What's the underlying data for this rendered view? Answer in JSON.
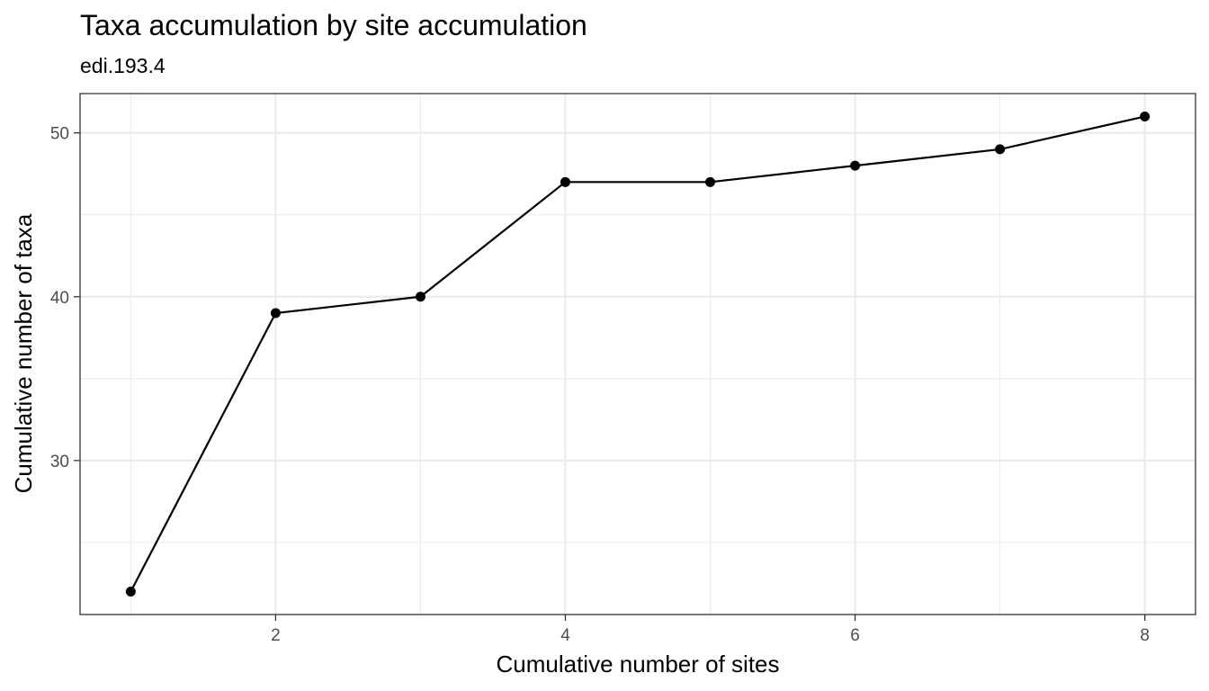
{
  "chart_data": {
    "type": "line",
    "title": "Taxa accumulation by site accumulation",
    "subtitle": "edi.193.4",
    "xlabel": "Cumulative number of sites",
    "ylabel": "Cumulative number of taxa",
    "x": [
      1,
      2,
      3,
      4,
      5,
      6,
      7,
      8
    ],
    "series": [
      {
        "values": [
          22,
          39,
          40,
          47,
          47,
          48,
          49,
          51
        ]
      }
    ],
    "xlim": [
      0.65,
      8.35
    ],
    "ylim": [
      20.6,
      52.4
    ],
    "x_ticks": [
      2,
      4,
      6,
      8
    ],
    "x_tick_labels": [
      "2",
      "4",
      "6",
      "8"
    ],
    "y_ticks": [
      30,
      40,
      50
    ],
    "y_tick_labels": [
      "30",
      "40",
      "50"
    ],
    "x_minor_ticks": [
      1,
      3,
      5,
      7
    ],
    "y_minor_ticks": [
      25,
      35,
      45
    ],
    "grid": true,
    "legend": "none",
    "colors": {
      "series": "#000000",
      "grid": "#ebebeb",
      "border": "#333333",
      "tick_label": "#4d4d4d"
    }
  }
}
